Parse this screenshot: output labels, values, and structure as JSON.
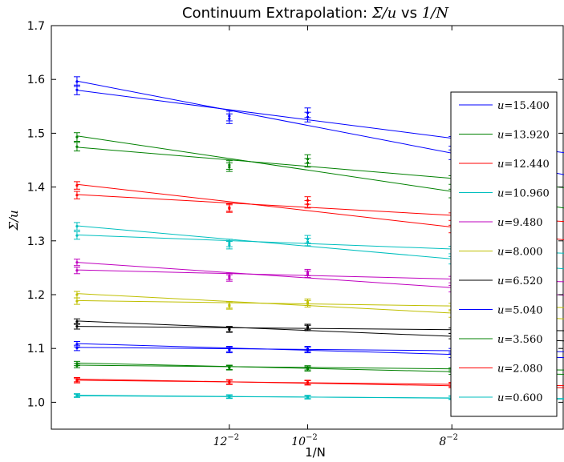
{
  "chart_data": {
    "type": "scatter",
    "title": {
      "prefix": "Continuum Extrapolation: ",
      "math_y": "Σ/u",
      "mid": " vs ",
      "math_x": "1/N"
    },
    "xlabel": "1/N",
    "ylabel": "Σ/u",
    "xlim": [
      0.0,
      0.02
    ],
    "ylim": [
      0.95,
      1.7
    ],
    "x_ticks": [
      {
        "value": 0.006944,
        "base": "12",
        "exp": "−2"
      },
      {
        "value": 0.01,
        "base": "10",
        "exp": "−2"
      },
      {
        "value": 0.015625,
        "base": "8",
        "exp": "−2"
      }
    ],
    "y_ticks": [
      "1.0",
      "1.1",
      "1.2",
      "1.3",
      "1.4",
      "1.5",
      "1.6",
      "1.7"
    ],
    "legend_position": "right",
    "x_points": [
      0.001,
      0.006944,
      0.01,
      0.015625
    ],
    "fit_x_end": 0.02,
    "series": [
      {
        "u_label": "u",
        "u_value": "15.400",
        "color": "#0000ff",
        "a": [
          1.5805,
          1.527,
          1.53,
          1.46
        ],
        "b": [
          1.596,
          1.532,
          1.538,
          1.485
        ],
        "err": 0.009,
        "fit_a": [
          1.597,
          1.423
        ],
        "fit_b": [
          1.58,
          1.464
        ]
      },
      {
        "u_label": "u",
        "u_value": "13.920",
        "color": "#008000",
        "a": [
          1.475,
          1.437,
          1.445,
          1.388
        ],
        "b": [
          1.493,
          1.441,
          1.452,
          1.413
        ],
        "err": 0.008,
        "fit_a": [
          1.495,
          1.361
        ],
        "fit_b": [
          1.474,
          1.399
        ]
      },
      {
        "u_label": "u",
        "u_value": "12.440",
        "color": "#ff0000",
        "a": [
          1.385,
          1.36,
          1.368,
          1.322
        ],
        "b": [
          1.403,
          1.362,
          1.375,
          1.345
        ],
        "err": 0.007,
        "fit_a": [
          1.405,
          1.302
        ],
        "fit_b": [
          1.386,
          1.336
        ]
      },
      {
        "u_label": "u",
        "u_value": "10.960",
        "color": "#00bfbf",
        "a": [
          1.31,
          1.292,
          1.298,
          1.264
        ],
        "b": [
          1.327,
          1.296,
          1.303,
          1.283
        ],
        "err": 0.007,
        "fit_a": [
          1.328,
          1.248
        ],
        "fit_b": [
          1.311,
          1.277
        ]
      },
      {
        "u_label": "u",
        "u_value": "9.480",
        "color": "#bf00bf",
        "a": [
          1.245,
          1.231,
          1.238,
          1.211
        ],
        "b": [
          1.26,
          1.234,
          1.241,
          1.228
        ],
        "err": 0.006,
        "fit_a": [
          1.26,
          1.199
        ],
        "fit_b": [
          1.246,
          1.224
        ]
      },
      {
        "u_label": "u",
        "u_value": "8.000",
        "color": "#bfbf00",
        "a": [
          1.188,
          1.179,
          1.183,
          1.164
        ],
        "b": [
          1.2,
          1.181,
          1.186,
          1.178
        ],
        "err": 0.006,
        "fit_a": [
          1.202,
          1.155
        ],
        "fit_b": [
          1.189,
          1.176
        ]
      },
      {
        "u_label": "u",
        "u_value": "6.520",
        "color": "#000000",
        "a": [
          1.141,
          1.135,
          1.138,
          1.123
        ],
        "b": [
          1.15,
          1.136,
          1.14,
          1.133
        ],
        "err": 0.005,
        "fit_a": [
          1.151,
          1.114
        ],
        "fit_b": [
          1.141,
          1.133
        ]
      },
      {
        "u_label": "u",
        "u_value": "5.040",
        "color": "#0000ff",
        "a": [
          1.101,
          1.097,
          1.097,
          1.088
        ],
        "b": [
          1.108,
          1.099,
          1.099,
          1.095
        ],
        "err": 0.005,
        "fit_a": [
          1.109,
          1.083
        ],
        "fit_b": [
          1.102,
          1.094
        ]
      },
      {
        "u_label": "u",
        "u_value": "3.560",
        "color": "#008000",
        "a": [
          1.068,
          1.064,
          1.062,
          1.056
        ],
        "b": [
          1.072,
          1.065,
          1.064,
          1.06
        ],
        "err": 0.004,
        "fit_a": [
          1.073,
          1.052
        ],
        "fit_b": [
          1.069,
          1.06
        ]
      },
      {
        "u_label": "u",
        "u_value": "2.080",
        "color": "#ff0000",
        "a": [
          1.04,
          1.037,
          1.036,
          1.031
        ],
        "b": [
          1.042,
          1.038,
          1.037,
          1.033
        ],
        "err": 0.004,
        "fit_a": [
          1.043,
          1.027
        ],
        "fit_b": [
          1.041,
          1.031
        ]
      },
      {
        "u_label": "u",
        "u_value": "0.600",
        "color": "#00bfbf",
        "a": [
          1.012,
          1.01,
          1.009,
          1.008
        ],
        "b": [
          1.013,
          1.011,
          1.01,
          1.009
        ],
        "err": 0.003,
        "fit_a": [
          1.013,
          1.006
        ],
        "fit_b": [
          1.012,
          1.007
        ]
      }
    ]
  }
}
